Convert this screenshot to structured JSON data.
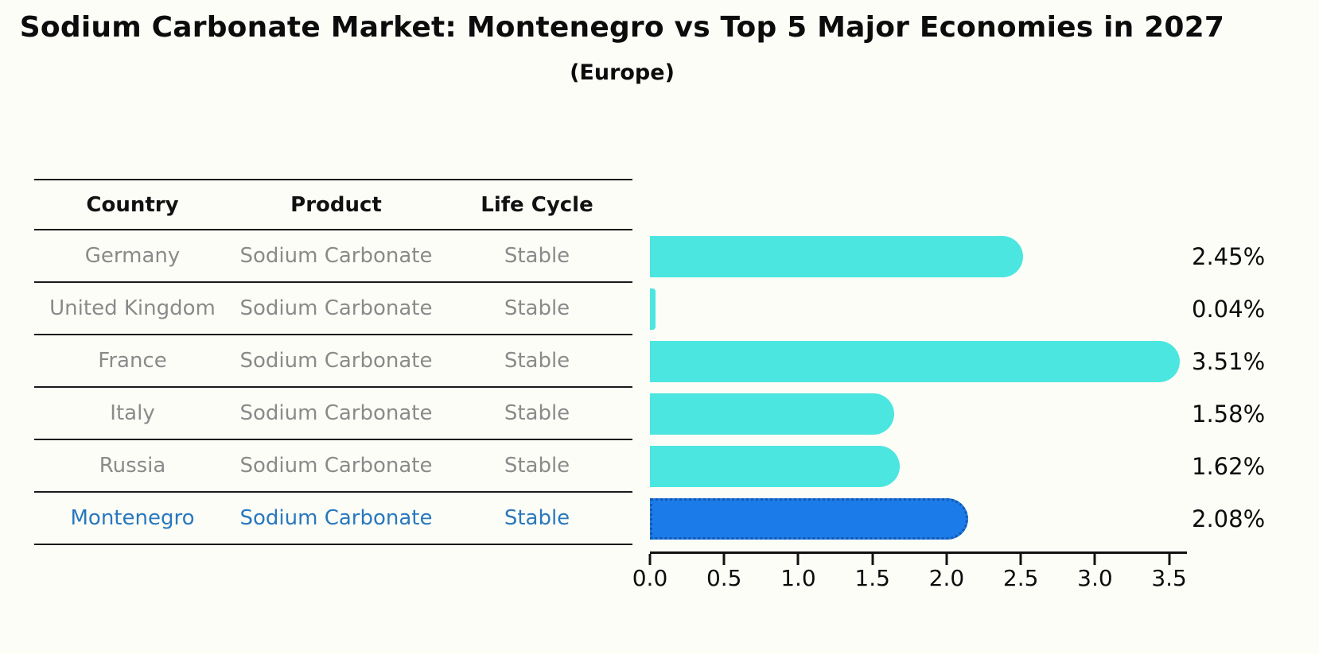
{
  "header": {
    "title": "Sodium Carbonate Market: Montenegro vs Top 5 Major Economies in 2027",
    "subtitle": "(Europe)"
  },
  "table": {
    "headers": [
      "Country",
      "Product",
      "Life Cycle"
    ],
    "rows": [
      {
        "country": "Germany",
        "product": "Sodium Carbonate",
        "life_cycle": "Stable",
        "highlight": false
      },
      {
        "country": "United Kingdom",
        "product": "Sodium Carbonate",
        "life_cycle": "Stable",
        "highlight": false
      },
      {
        "country": "France",
        "product": "Sodium Carbonate",
        "life_cycle": "Stable",
        "highlight": false
      },
      {
        "country": "Italy",
        "product": "Sodium Carbonate",
        "life_cycle": "Stable",
        "highlight": false
      },
      {
        "country": "Russia",
        "product": "Sodium Carbonate",
        "life_cycle": "Stable",
        "highlight": true
      }
    ],
    "highlight_row": {
      "country": "Montenegro",
      "product": "Sodium Carbonate",
      "life_cycle": "Stable"
    }
  },
  "chart_data": {
    "type": "bar",
    "orientation": "horizontal",
    "title": "Sodium Carbonate Market: Montenegro vs Top 5 Major Economies in 2027 (Europe)",
    "categories": [
      "Germany",
      "United Kingdom",
      "France",
      "Italy",
      "Russia",
      "Montenegro"
    ],
    "values": [
      2.45,
      0.04,
      3.51,
      1.58,
      1.62,
      2.08
    ],
    "value_labels": [
      "2.45%",
      "0.04%",
      "3.51%",
      "1.58%",
      "1.62%",
      "2.08%"
    ],
    "xlabel": "",
    "ylabel": "",
    "xlim": [
      0,
      3.62
    ],
    "xticks": [
      "0.0",
      "0.5",
      "1.0",
      "1.5",
      "2.0",
      "2.5",
      "3.0",
      "3.5"
    ],
    "grid": false,
    "legend": "none",
    "highlight_index": 5,
    "bar_color": "#4BE6E0",
    "highlight_bar_color": "#1B7BE8",
    "highlight_edge_color": "#1558B0",
    "label_color": "#0c0c0c"
  }
}
